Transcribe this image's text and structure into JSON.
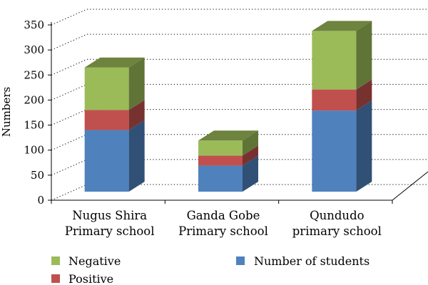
{
  "chart_data": {
    "type": "bar",
    "stacked": true,
    "three_d": true,
    "categories": [
      [
        "Nugus Shira",
        "Primary school"
      ],
      [
        "Ganda Gobe",
        "Primary school"
      ],
      [
        "Qundudo",
        "primary school"
      ]
    ],
    "series": [
      {
        "name": "Number of students",
        "values": [
          123,
          52,
          162
        ],
        "color": "#4f81bd"
      },
      {
        "name": "Positive",
        "values": [
          40,
          20,
          42
        ],
        "color": "#c0504d"
      },
      {
        "name": "Negative",
        "values": [
          85,
          30,
          117
        ],
        "color": "#9bbb59"
      }
    ],
    "ylabel": "Numbers",
    "ylim": [
      0,
      350
    ],
    "yticks": [
      0,
      50,
      100,
      150,
      200,
      250,
      300,
      350
    ],
    "grid": "dotted-horizontal",
    "legend": [
      {
        "series": "Negative",
        "position": "bottom-left"
      },
      {
        "series": "Positive",
        "position": "bottom-left"
      },
      {
        "series": "Number of students",
        "position": "bottom-center"
      }
    ]
  }
}
